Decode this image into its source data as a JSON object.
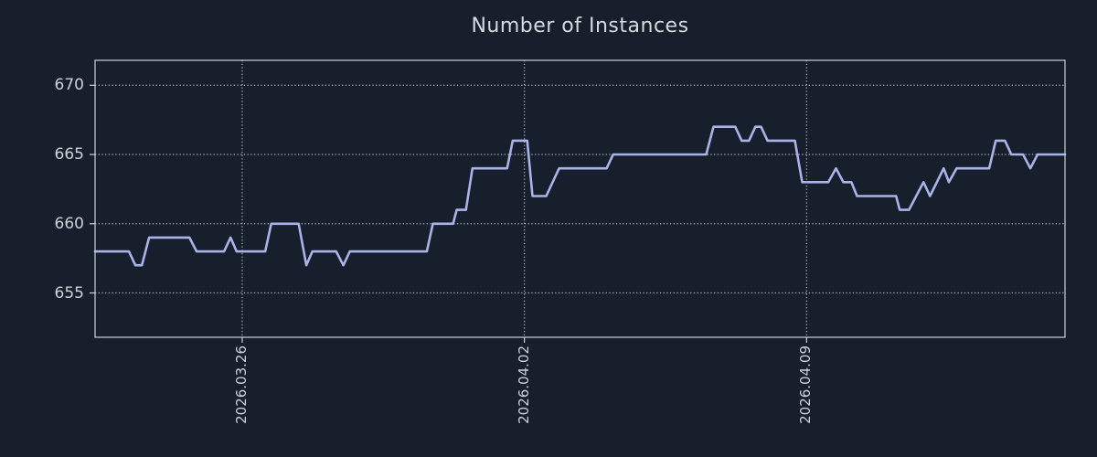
{
  "title": "Number of Instances",
  "colors": {
    "background": "#171f2c",
    "line": "#aab3e9",
    "axis": "#cdd2d8",
    "grid": "#c6cbd1",
    "text": "#cdd1d6"
  },
  "chart_data": {
    "type": "line",
    "title": "Number of Instances",
    "xlabel": "",
    "ylabel": "",
    "x_unit": "days relative to 2026.03.26",
    "xlim": [
      -3.65,
      20.41
    ],
    "ylim": [
      651.8,
      671.8
    ],
    "grid": true,
    "legend": false,
    "x_ticks": [
      {
        "value": 0,
        "label": "2026.03.26"
      },
      {
        "value": 7,
        "label": "2026.04.02"
      },
      {
        "value": 14,
        "label": "2026.04.09"
      }
    ],
    "y_ticks": [
      {
        "value": 655,
        "label": "655"
      },
      {
        "value": 660,
        "label": "660"
      },
      {
        "value": 665,
        "label": "665"
      },
      {
        "value": 670,
        "label": "670"
      }
    ],
    "series": [
      {
        "name": "instances",
        "points": [
          [
            -3.65,
            658
          ],
          [
            -2.81,
            658
          ],
          [
            -2.65,
            657
          ],
          [
            -2.49,
            657
          ],
          [
            -2.31,
            659
          ],
          [
            -1.31,
            659
          ],
          [
            -1.13,
            658
          ],
          [
            -0.45,
            658
          ],
          [
            -0.29,
            659
          ],
          [
            -0.14,
            658
          ],
          [
            0.57,
            658
          ],
          [
            0.72,
            660
          ],
          [
            1.4,
            660
          ],
          [
            1.59,
            657
          ],
          [
            1.74,
            658
          ],
          [
            2.33,
            658
          ],
          [
            2.51,
            657
          ],
          [
            2.67,
            658
          ],
          [
            4.58,
            658
          ],
          [
            4.73,
            660
          ],
          [
            5.23,
            660
          ],
          [
            5.32,
            661
          ],
          [
            5.55,
            661
          ],
          [
            5.71,
            664
          ],
          [
            6.57,
            664
          ],
          [
            6.71,
            666
          ],
          [
            7.07,
            666
          ],
          [
            7.2,
            662
          ],
          [
            7.54,
            662
          ],
          [
            7.86,
            664
          ],
          [
            9.04,
            664
          ],
          [
            9.2,
            665
          ],
          [
            11.51,
            665
          ],
          [
            11.69,
            667
          ],
          [
            12.23,
            667
          ],
          [
            12.39,
            666
          ],
          [
            12.57,
            666
          ],
          [
            12.73,
            667
          ],
          [
            12.87,
            667
          ],
          [
            13.03,
            666
          ],
          [
            13.71,
            666
          ],
          [
            13.89,
            663
          ],
          [
            14.54,
            663
          ],
          [
            14.73,
            664
          ],
          [
            14.91,
            663
          ],
          [
            15.11,
            663
          ],
          [
            15.25,
            662
          ],
          [
            16.22,
            662
          ],
          [
            16.31,
            661
          ],
          [
            16.54,
            661
          ],
          [
            16.9,
            663
          ],
          [
            17.06,
            662
          ],
          [
            17.4,
            664
          ],
          [
            17.53,
            663
          ],
          [
            17.72,
            664
          ],
          [
            18.53,
            664
          ],
          [
            18.69,
            666
          ],
          [
            18.92,
            666
          ],
          [
            19.08,
            665
          ],
          [
            19.37,
            665
          ],
          [
            19.55,
            664
          ],
          [
            19.73,
            665
          ],
          [
            20.41,
            665
          ]
        ]
      }
    ]
  }
}
